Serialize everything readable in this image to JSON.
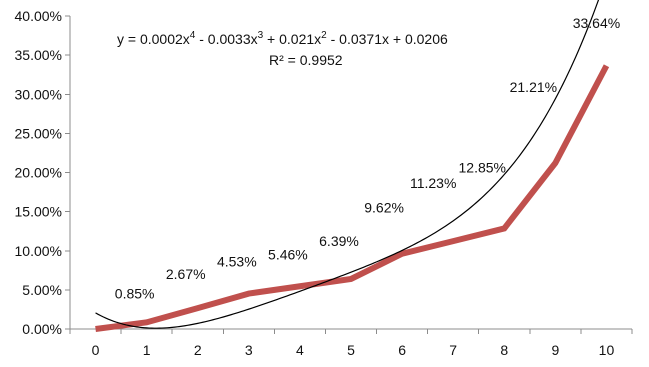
{
  "chart_data": {
    "type": "line",
    "title": "",
    "xlabel": "",
    "ylabel": "",
    "x": [
      0,
      1,
      2,
      3,
      4,
      5,
      6,
      7,
      8,
      9,
      10
    ],
    "xlim": [
      0,
      10
    ],
    "ylim": [
      0,
      0.4
    ],
    "x_tick_labels": [
      "0",
      "1",
      "2",
      "3",
      "4",
      "5",
      "6",
      "7",
      "8",
      "9",
      "10"
    ],
    "y_tick_labels": [
      "0.00%",
      "5.00%",
      "10.00%",
      "15.00%",
      "20.00%",
      "25.00%",
      "30.00%",
      "35.00%",
      "40.00%"
    ],
    "grid": false,
    "legend": "none",
    "series": [
      {
        "values": [
          0.0,
          0.0085,
          0.0267,
          0.0453,
          0.0546,
          0.0639,
          0.0962,
          0.1123,
          0.1285,
          0.2121,
          0.3364
        ],
        "color": "#c0504d",
        "data_labels": [
          "",
          "0.85%",
          "2.67%",
          "4.53%",
          "5.46%",
          "6.39%",
          "9.62%",
          "11.23%",
          "12.85%",
          "21.21%",
          "33.64%"
        ]
      }
    ],
    "trendline": {
      "kind": "polynomial",
      "order": 4,
      "coefficients": [
        0.0002,
        -0.0033,
        0.021,
        -0.0371,
        0.0206
      ],
      "equation_parts": {
        "lead": "y = 0.0002x",
        "p1": "4",
        "t2": " - 0.0033x",
        "p2": "3",
        "t3": " + 0.021x",
        "p3": "2",
        "tail": " - 0.0371x + 0.0206"
      },
      "r_squared_text": "R² = 0.9952",
      "color": "#000000"
    }
  }
}
